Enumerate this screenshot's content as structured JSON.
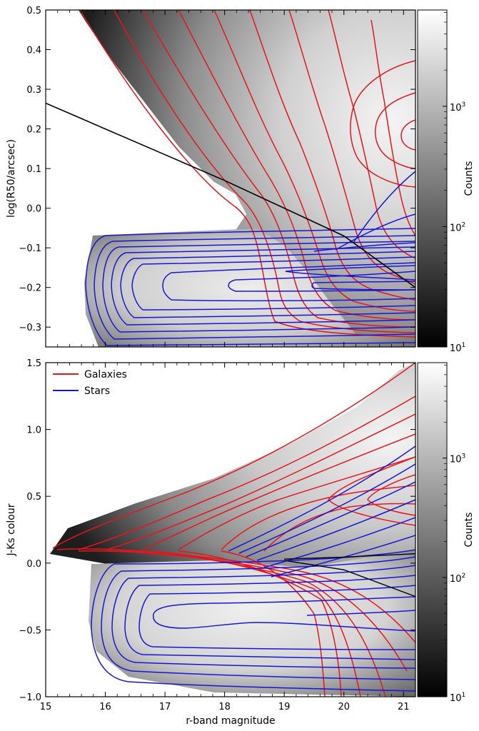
{
  "chart_data": [
    {
      "type": "heatmap",
      "title": "",
      "xlabel": "",
      "ylabel": "log(R50/arcsec)",
      "xlim": [
        15,
        21.2
      ],
      "ylim": [
        -0.35,
        0.5
      ],
      "xticks": [
        "15",
        "16",
        "17",
        "18",
        "19",
        "20",
        "21"
      ],
      "yticks": [
        "−0.3",
        "−0.2",
        "−0.1",
        "0.0",
        "0.1",
        "0.2",
        "0.3",
        "0.4",
        "0.5"
      ],
      "colorbar": {
        "label": "Counts",
        "scale": "log",
        "min_exp": 1,
        "max_exp": 3.8,
        "ticks": [
          "10",
          "10",
          "10"
        ],
        "tick_exponents": [
          "1",
          "2",
          "3"
        ],
        "tick_values": [
          10,
          100,
          1000
        ]
      },
      "series": [
        {
          "role": "galaxies-contours",
          "color": "#e8151b",
          "levels": 12
        },
        {
          "role": "stars-contours",
          "color": "#1616d8",
          "levels": 13
        },
        {
          "role": "separation-line",
          "color": "#000000",
          "x": [
            15,
            16,
            17,
            18,
            19,
            20,
            21.2
          ],
          "y": [
            0.265,
            0.2,
            0.135,
            0.07,
            0.0,
            -0.07,
            -0.2
          ]
        }
      ]
    },
    {
      "type": "heatmap",
      "title": "",
      "xlabel": "r-band magnitude",
      "ylabel": "J-Ks colour",
      "xlim": [
        15,
        21.2
      ],
      "ylim": [
        -1.0,
        1.5
      ],
      "xticks": [
        "15",
        "16",
        "17",
        "18",
        "19",
        "20",
        "21"
      ],
      "yticks": [
        "−1.0",
        "−0.5",
        "0.0",
        "0.5",
        "1.0",
        "1.5"
      ],
      "colorbar": {
        "label": "Counts",
        "scale": "log",
        "min_exp": 1,
        "max_exp": 3.8,
        "ticks": [
          "10",
          "10",
          "10"
        ],
        "tick_exponents": [
          "1",
          "2",
          "3"
        ],
        "tick_values": [
          10,
          100,
          1000
        ]
      },
      "legend": {
        "placement": "top-left",
        "entries": [
          {
            "name": "Galaxies",
            "color": "#e8151b"
          },
          {
            "name": "Stars",
            "color": "#1616d8"
          }
        ]
      },
      "series": [
        {
          "role": "separation-line",
          "color": "#000000",
          "x": [
            19,
            20,
            21.2
          ],
          "y": [
            0.03,
            0.045,
            0.07
          ]
        },
        {
          "role": "separation-curve",
          "color": "#000000",
          "x": [
            19,
            20,
            21.2
          ],
          "y": [
            0.02,
            -0.05,
            -0.25
          ]
        }
      ]
    }
  ]
}
